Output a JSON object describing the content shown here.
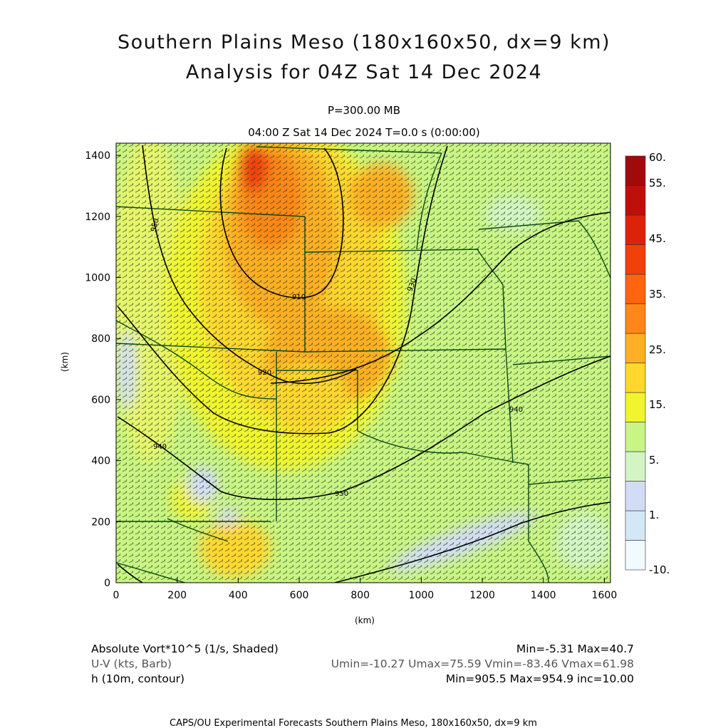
{
  "header": {
    "title": "Southern Plains Meso (180x160x50, dx=9 km)",
    "subtitle": "Analysis for 04Z Sat 14 Dec 2024",
    "level": "P=300.00 MB",
    "time": "04:00 Z Sat 14 Dec 2024    T=0.0 s (0:00:00)"
  },
  "axes": {
    "xlabel": "(km)",
    "ylabel": "(km)",
    "xticks": [
      "0",
      "200",
      "400",
      "600",
      "800",
      "1000",
      "1200",
      "1400",
      "1600"
    ],
    "yticks": [
      "0",
      "200",
      "400",
      "600",
      "800",
      "1000",
      "1200",
      "1400"
    ],
    "xlim": [
      0,
      1620
    ],
    "ylim": [
      0,
      1440
    ]
  },
  "colorbar": {
    "labels": [
      "60.",
      "55.",
      "45.",
      "35.",
      "25.",
      "15.",
      "5.",
      "1.",
      "-10."
    ],
    "colors": [
      "#f0faff",
      "#d2e8f5",
      "#d2dcf5",
      "#d2f5c3",
      "#c8f583",
      "#f0f52d",
      "#ffd72d",
      "#ffaf23",
      "#ff8719",
      "#ff640f",
      "#f0410a",
      "#dc230a",
      "#be0f0a",
      "#a00a0a"
    ]
  },
  "contours": {
    "labels": [
      "910",
      "920",
      "930",
      "940",
      "950",
      "940",
      "950"
    ]
  },
  "footer": {
    "field1_label": "Absolute Vort*10^5 (1/s, Shaded)",
    "field1_stats": "Min=-5.31  Max=40.7",
    "field2_label": "U-V (kts, Barb)",
    "field2_stats": "Umin=-10.27  Umax=75.59  Vmin=-83.46  Vmax=61.98",
    "field3_label": "h (10m, contour)",
    "field3_stats": "Min=905.5  Max=954.9  inc=10.00",
    "credit": "CAPS/OU Experimental Forecasts    Southern Plains Meso, 180x160x50, dx=9 km"
  },
  "colors": {
    "background_field": "#c8f583",
    "borders": "#0a4a14",
    "contours": "#000000",
    "barbs": "#2a3a26"
  }
}
